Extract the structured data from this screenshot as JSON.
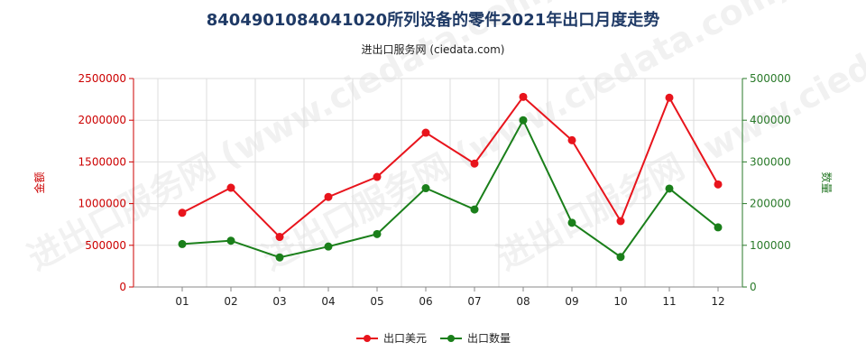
{
  "title": "8404901084041020所列设备的零件2021年出口月度走势",
  "subtitle": "进出口服务网 (ciedata.com)",
  "watermark": "进出口服务网 (www.ciedata.com)",
  "colors": {
    "usd": "#e8141c",
    "qty": "#1a7f1a",
    "grid": "#dddddd",
    "left_axis": "#cc0000",
    "right_axis": "#2a7a2a"
  },
  "chart_data": {
    "type": "line",
    "title": "8404901084041020所列设备的零件2021年出口月度走势",
    "categories": [
      "01",
      "02",
      "03",
      "04",
      "05",
      "06",
      "07",
      "08",
      "09",
      "10",
      "11",
      "12"
    ],
    "y_left": {
      "label": "金额",
      "min": 0,
      "max": 2500000,
      "ticks": [
        "0",
        "500000",
        "1000000",
        "1500000",
        "2000000",
        "2500000"
      ]
    },
    "y_right": {
      "label": "数量",
      "min": 0,
      "max": 500000,
      "ticks": [
        "0",
        "100000",
        "200000",
        "300000",
        "400000",
        "500000"
      ]
    },
    "grid": true,
    "legend_position": "bottom",
    "series": [
      {
        "name": "出口美元",
        "axis": "left",
        "color": "#e8141c",
        "values": [
          890000,
          1190000,
          600000,
          1080000,
          1320000,
          1850000,
          1480000,
          2280000,
          1760000,
          790000,
          2270000,
          1230000
        ]
      },
      {
        "name": "出口数量",
        "axis": "right",
        "color": "#1a7f1a",
        "values": [
          103000,
          111000,
          71000,
          97000,
          127000,
          237000,
          186000,
          400000,
          154000,
          72000,
          236000,
          143000
        ]
      }
    ]
  }
}
